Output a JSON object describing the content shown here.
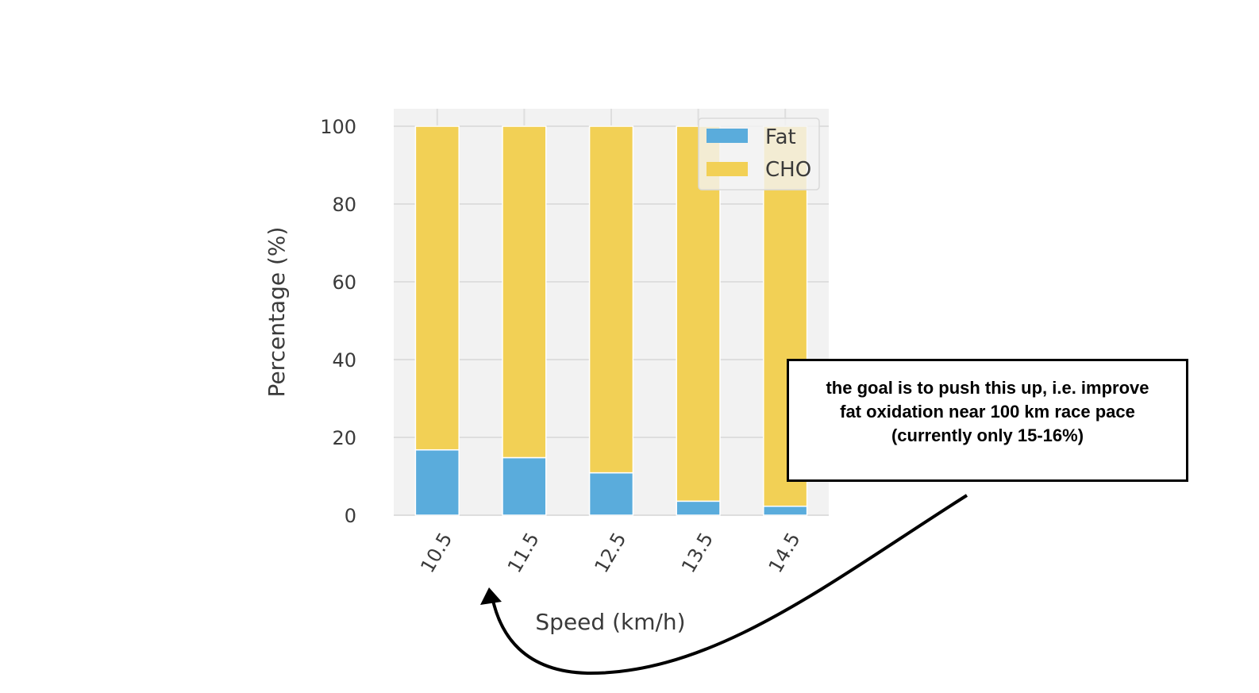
{
  "chart_data": {
    "type": "bar",
    "stacked": true,
    "categories": [
      "10.5",
      "11.5",
      "12.5",
      "13.5",
      "14.5"
    ],
    "series": [
      {
        "name": "Fat",
        "values": [
          16.8,
          14.8,
          10.9,
          3.6,
          2.3
        ],
        "color": "#5aacdc"
      },
      {
        "name": "CHO",
        "values": [
          83.2,
          85.2,
          89.1,
          96.4,
          97.7
        ],
        "color": "#f2d055"
      }
    ],
    "xlabel": "Speed (km/h)",
    "ylabel": "Percentage (%)",
    "ylim": [
      0,
      104.5
    ],
    "yticks": [
      "0",
      "20",
      "40",
      "60",
      "80",
      "100"
    ],
    "grid": true,
    "legend": "upper right",
    "background_color": "#f2f2f2"
  },
  "annotation": {
    "text": "the goal is to push this up, i.e. improve\nfat oxidation near 100 km race pace\n(currently only 15-16%)",
    "arrow_target": "10.5"
  }
}
